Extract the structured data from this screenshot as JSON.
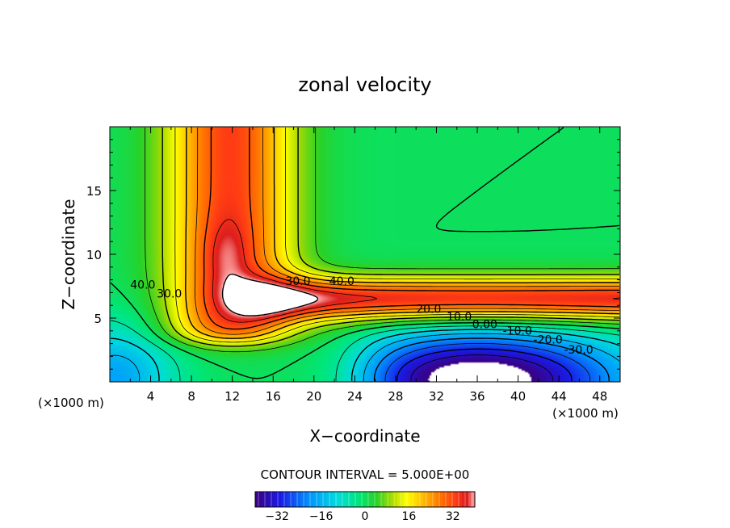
{
  "chart_data": {
    "type": "heatmap",
    "title": "zonal velocity",
    "xlabel": "X−coordinate",
    "ylabel": "Z−coordinate",
    "x_unit_left": "(×1000 m)",
    "x_unit_right": "(×1000 m)",
    "xlim": [
      0,
      50
    ],
    "ylim": [
      0,
      20
    ],
    "x_ticks": [
      4,
      8,
      12,
      16,
      20,
      24,
      28,
      32,
      36,
      40,
      44,
      48
    ],
    "y_ticks": [
      5,
      10,
      15
    ],
    "contour_interval_text": "CONTOUR INTERVAL = 5.000E+00",
    "contour_labels": [
      {
        "text": "40.0",
        "x": 2.0,
        "z": 7.3
      },
      {
        "text": "30.0",
        "x": 4.6,
        "z": 6.6
      },
      {
        "text": "30.0",
        "x": 17.2,
        "z": 7.6
      },
      {
        "text": "40.0",
        "x": 21.5,
        "z": 7.6
      },
      {
        "text": "20.0",
        "x": 30.0,
        "z": 5.4
      },
      {
        "text": "10.0",
        "x": 33.0,
        "z": 4.8
      },
      {
        "text": "0.00",
        "x": 35.5,
        "z": 4.2
      },
      {
        "text": "-10.0",
        "x": 38.5,
        "z": 3.7
      },
      {
        "text": "-20.0",
        "x": 41.5,
        "z": 3.0
      },
      {
        "text": "-30.0",
        "x": 44.5,
        "z": 2.2
      }
    ],
    "colorbar": {
      "range": [
        -40,
        40
      ],
      "ticks": [
        -32,
        -16,
        0,
        16,
        32
      ],
      "tick_labels": [
        "−32",
        "−16",
        "0",
        "16",
        "32"
      ]
    },
    "colors": {
      "scale": [
        "#3a0080",
        "#1a1ae6",
        "#00b4ff",
        "#00e6a0",
        "#28d228",
        "#aadc00",
        "#ffff00",
        "#ffbe00",
        "#ff7800",
        "#ff3c14",
        "#dc1e1e",
        "#ffc8c8"
      ],
      "masked": "#ffffff",
      "axis": "#000000"
    }
  }
}
